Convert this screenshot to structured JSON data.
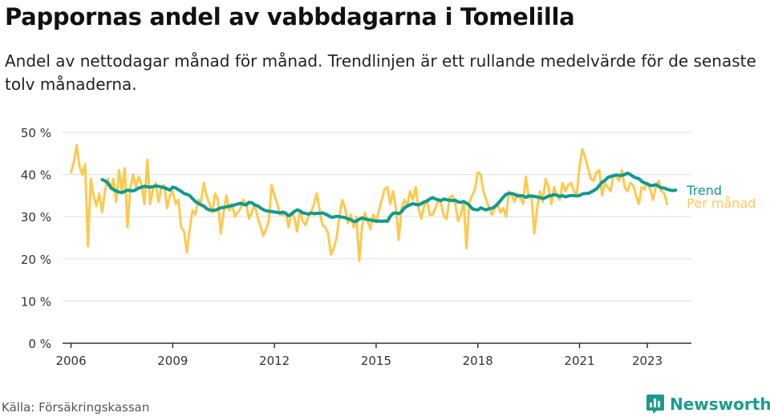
{
  "title": "Pappornas andel av vabbdagarna i Tomelilla",
  "subtitle": "Andel av nettodagar månad för månad. Trendlinjen är ett rullande medelvärde för de senaste tolv månaderna.",
  "source": "Källa: Försäkringskassan",
  "brand": "Newsworthy",
  "colors": {
    "monthly": "#ffc94d",
    "trend": "#0f9a8e",
    "grid": "#dddddd",
    "axis": "#333333",
    "text": "#333333"
  },
  "chart_data": {
    "type": "line",
    "ylim": [
      0,
      50
    ],
    "yticks": [
      0,
      10,
      20,
      30,
      40,
      50
    ],
    "ytick_labels": [
      "0 %",
      "10 %",
      "20 %",
      "30 %",
      "40 %",
      "50 %"
    ],
    "xlim": [
      2005.75,
      2024.3
    ],
    "xticks": [
      2006,
      2009,
      2012,
      2015,
      2018,
      2021,
      2023
    ],
    "xtick_labels": [
      "2006",
      "2009",
      "2012",
      "2015",
      "2018",
      "2021",
      "2023"
    ],
    "grid": true,
    "series": [
      {
        "name": "Per månad",
        "x_start": 2006.0,
        "step_months": 1,
        "values": [
          40.5,
          43,
          47,
          42,
          40,
          42.5,
          23,
          39,
          35,
          32.5,
          35.5,
          31,
          36,
          39,
          36.5,
          39,
          33.5,
          41,
          36,
          41.5,
          27.5,
          37,
          40,
          37,
          39.5,
          37.5,
          33,
          43.5,
          33,
          36.5,
          38,
          33.5,
          37,
          37.5,
          32,
          35,
          36,
          33,
          34,
          27.5,
          26.5,
          21.5,
          27,
          31.5,
          30.5,
          34,
          33.5,
          38,
          35,
          33,
          31,
          35.5,
          34,
          26,
          31,
          35,
          31.5,
          33,
          30,
          31,
          32,
          34,
          33,
          29.5,
          31,
          33,
          30,
          28,
          25.5,
          27,
          29,
          37.5,
          35,
          33,
          30.5,
          30.5,
          31,
          27.5,
          31,
          30,
          26.5,
          31.5,
          29,
          28,
          30,
          31,
          33,
          35.5,
          31.5,
          28,
          27.5,
          26,
          21,
          22.5,
          25,
          30,
          34,
          32,
          28.5,
          30.5,
          27.5,
          30,
          19.5,
          27.5,
          31,
          29,
          27,
          30.5,
          29,
          31.5,
          34,
          36.5,
          37,
          33,
          36,
          32,
          24.5,
          32,
          34,
          32.5,
          36,
          34,
          37,
          32,
          29.5,
          32.5,
          34,
          30.5,
          30.5,
          32,
          34,
          33,
          30,
          29.5,
          34.5,
          35,
          33,
          29,
          30.5,
          33.5,
          22.5,
          33.5,
          35,
          36.5,
          40.5,
          40,
          36,
          34,
          32,
          30.5,
          32,
          33,
          31,
          32,
          30,
          36,
          35,
          33.5,
          35.5,
          34.5,
          33,
          39.5,
          34.5,
          35,
          26,
          32,
          36,
          33.5,
          39,
          37,
          33,
          37,
          35,
          34,
          38,
          36,
          37.5,
          38,
          36,
          35,
          42,
          46,
          44,
          41.5,
          39,
          38.5,
          40.5,
          41,
          35,
          38,
          37,
          36,
          40,
          39.5,
          38.5,
          41,
          37,
          36,
          38,
          37.5,
          35,
          33,
          37,
          36.5,
          38,
          36.5,
          34,
          37,
          38.5,
          36,
          35.5,
          33
        ]
      },
      {
        "name": "Trend",
        "x_start": 2006.917,
        "step_months": 1,
        "values": [
          38.8,
          38.5,
          38,
          37,
          36.4,
          36.1,
          35.8,
          35.7,
          36,
          36.3,
          36.2,
          36.1,
          36.4,
          36.8,
          37,
          37.2,
          37.1,
          37,
          37.1,
          37.3,
          37.2,
          37,
          36.9,
          36.6,
          36.3,
          37,
          36.8,
          36.4,
          36,
          35.5,
          35.3,
          35,
          34.3,
          33.6,
          33.2,
          32.8,
          32.5,
          31.9,
          31.6,
          31.5,
          31.5,
          31.8,
          32.1,
          32.2,
          32.3,
          32.5,
          32.6,
          32.8,
          33,
          33.2,
          32.9,
          32.8,
          33.4,
          33.3,
          32.8,
          32.6,
          32.1,
          31.7,
          31.4,
          31.3,
          31.2,
          31.1,
          31,
          30.9,
          31.1,
          30.8,
          30.2,
          30.6,
          31.2,
          31.6,
          31.4,
          30.9,
          30.8,
          30.6,
          30.9,
          30.7,
          30.8,
          30.8,
          30.9,
          30.6,
          30.3,
          29.9,
          29.9,
          30.1,
          30,
          29.9,
          29.8,
          29.5,
          29.3,
          28.9,
          28.9,
          29.4,
          29.7,
          29.5,
          29.3,
          29.2,
          29.1,
          28.9,
          29,
          28.9,
          29,
          28.9,
          30.1,
          30.8,
          30.9,
          30.7,
          31.2,
          32.1,
          32.5,
          32.8,
          33.1,
          32.9,
          32.8,
          33.1,
          33.5,
          33.7,
          34.2,
          34.5,
          34.2,
          34,
          33.8,
          34.2,
          34,
          33.9,
          33.8,
          33.9,
          33.5,
          33.4,
          33.6,
          33.2,
          32.7,
          31.9,
          31.7,
          31.6,
          32.1,
          31.8,
          31.6,
          31.9,
          32,
          32.4,
          33,
          33.8,
          34.6,
          35.3,
          35.5,
          35.5,
          35.3,
          34.9,
          35,
          34.9,
          34.6,
          34.9,
          34.9,
          34.8,
          34.7,
          34.5,
          34.3,
          34.5,
          34.9,
          35,
          35.2,
          35.1,
          34.8,
          35,
          34.7,
          34.9,
          35,
          35,
          34.9,
          35,
          35.4,
          35.5,
          35.5,
          35.8,
          36.2,
          36.6,
          37.4,
          38.2,
          38.6,
          39.3,
          39.5,
          39.7,
          39.9,
          39.8,
          39.8,
          40,
          40.3,
          40,
          39.5,
          39.2,
          39,
          38.4,
          38,
          37.8,
          37.4,
          37.4,
          37.6,
          37.2,
          36.8,
          36.8,
          36.5,
          36.3,
          36.2,
          36.3
        ]
      }
    ],
    "legend_placement": "right-end"
  }
}
